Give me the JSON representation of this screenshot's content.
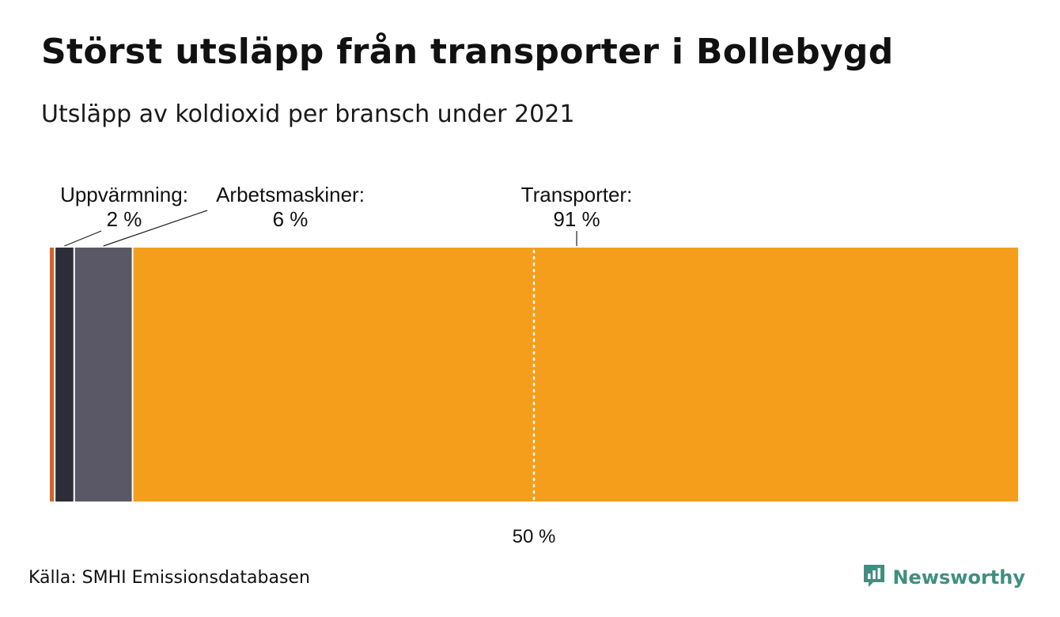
{
  "title": "Störst utsläpp från transporter i Bollebygd",
  "subtitle": "Utsläpp av koldioxid per bransch under 2021",
  "source": "Källa: SMHI Emissionsdatabasen",
  "brand": {
    "name": "Newsworthy",
    "icon": "newsworthy-logo-icon",
    "color": "#3f8f80"
  },
  "chart_data": {
    "type": "bar",
    "orientation": "horizontal-stacked-100",
    "unit": "%",
    "segments": [
      {
        "key": "unlabeled-1",
        "name": "",
        "value": 0.5,
        "color": "#d9602a",
        "label": "",
        "value_label": ""
      },
      {
        "key": "uppvarmning",
        "name": "Uppvärmning",
        "value": 2,
        "color": "#2d2d3a",
        "label": "Uppvärmning:",
        "value_label": "2 %"
      },
      {
        "key": "arbetsmaskiner",
        "name": "Arbetsmaskiner",
        "value": 6,
        "color": "#5a5866",
        "label": "Arbetsmaskiner:",
        "value_label": "6 %"
      },
      {
        "key": "transporter",
        "name": "Transporter",
        "value": 91,
        "color": "#f59e1b",
        "label": "Transporter:",
        "value_label": "91 %"
      }
    ],
    "reference_line": {
      "value": 50,
      "label": "50 %"
    },
    "xlim": [
      0,
      100
    ],
    "grid": false,
    "legend": "none"
  }
}
